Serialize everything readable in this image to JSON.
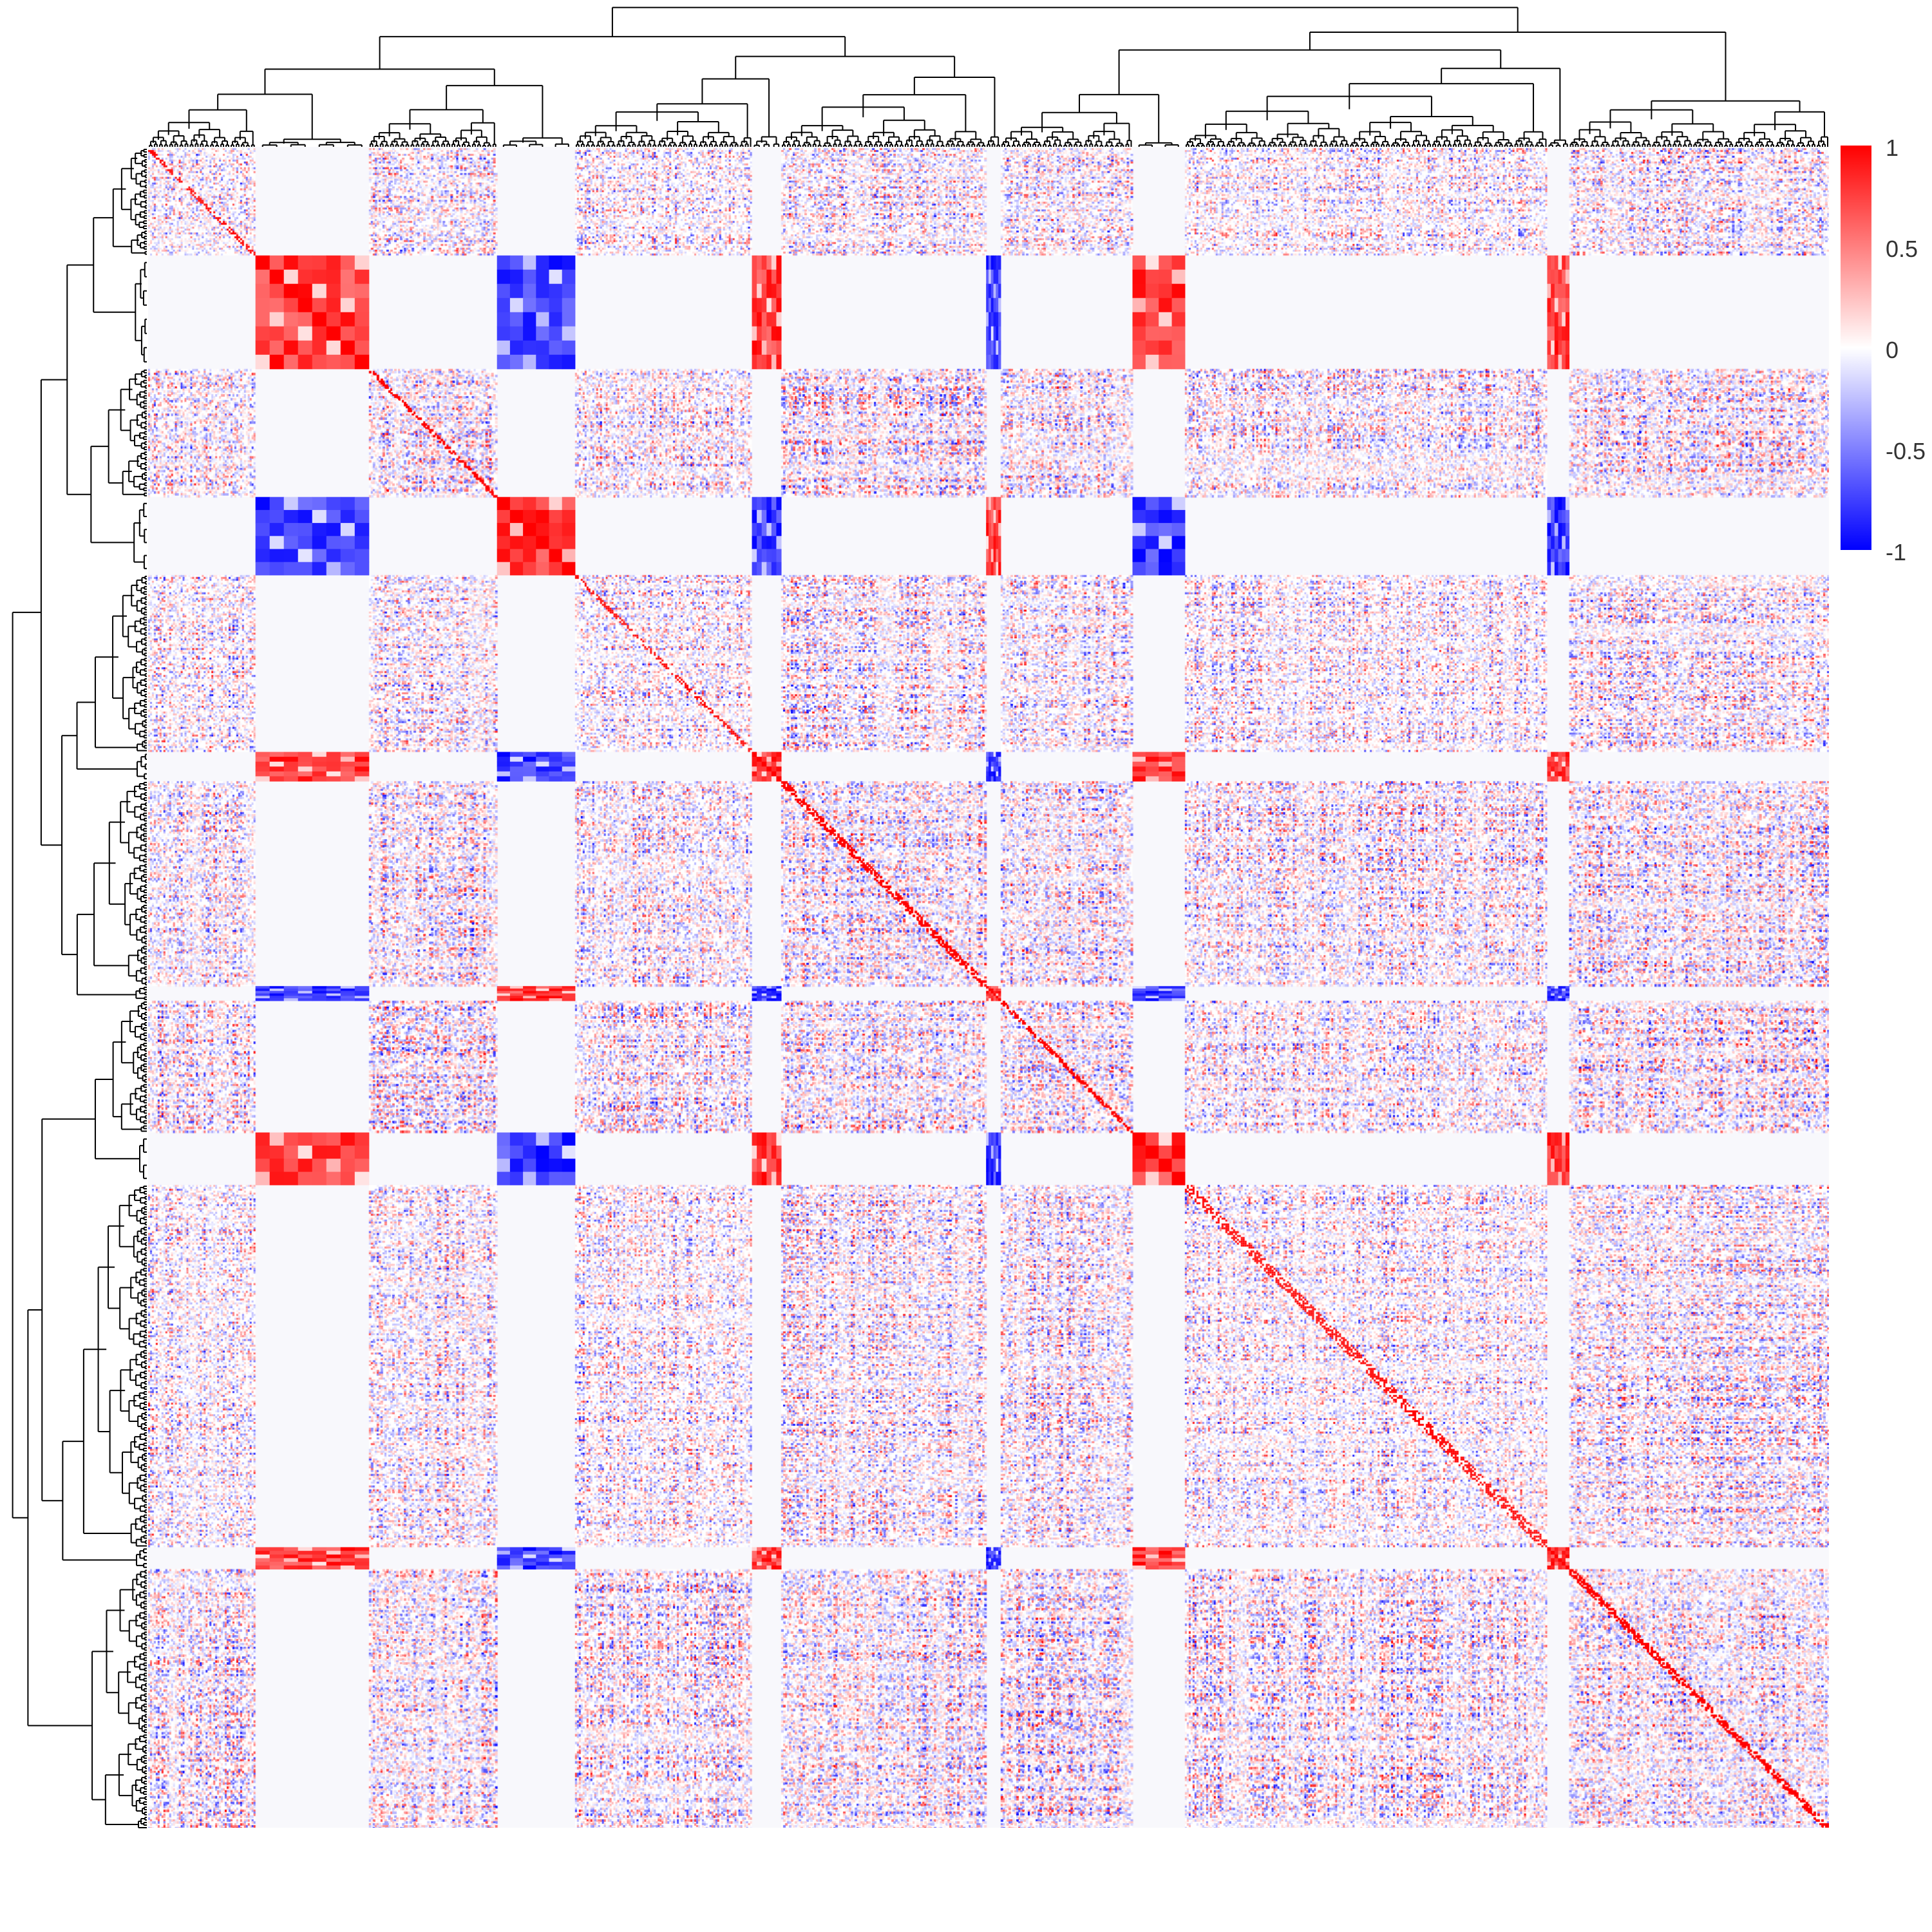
{
  "chart_data": {
    "type": "heatmap",
    "description_kind": "clustered correlation matrix with row and column dendrograms",
    "value_range": [
      -1,
      1
    ],
    "colorscale": {
      "low": "#0000ff",
      "mid": "#ffffff",
      "high": "#ff0000",
      "blank": "#f8f8fc"
    },
    "legend": {
      "position": "right",
      "ticks": [
        {
          "label": "1",
          "value": 1
        },
        {
          "label": "0.5",
          "value": 0.5
        },
        {
          "label": "0",
          "value": 0
        },
        {
          "label": "-0.5",
          "value": -0.5
        },
        {
          "label": "-1",
          "value": -1
        }
      ]
    },
    "block_weights": [
      88,
      93,
      105,
      64,
      145,
      24,
      168,
      12,
      108,
      43,
      297,
      18,
      213
    ],
    "block_kinds": [
      "noise",
      "strong",
      "noise",
      "strong",
      "noise",
      "strong",
      "noise",
      "strong",
      "noise",
      "strong",
      "noise",
      "strong",
      "noise"
    ],
    "block_sizes_strong": [
      8,
      6,
      6,
      6,
      4,
      6
    ],
    "strong_pattern": [
      [
        1,
        -1,
        1,
        -1,
        1,
        1
      ],
      [
        -1,
        1,
        -1,
        1,
        -1,
        -1
      ],
      [
        1,
        -1,
        1,
        -1,
        1,
        1
      ],
      [
        -1,
        1,
        -1,
        1,
        -1,
        -1
      ],
      [
        1,
        -1,
        1,
        -1,
        1,
        1
      ],
      [
        1,
        -1,
        1,
        -1,
        1,
        1
      ]
    ],
    "noise_density": 0.55,
    "grid": false
  },
  "colors": {
    "dendrogram": "#000000",
    "background": "#ffffff"
  }
}
